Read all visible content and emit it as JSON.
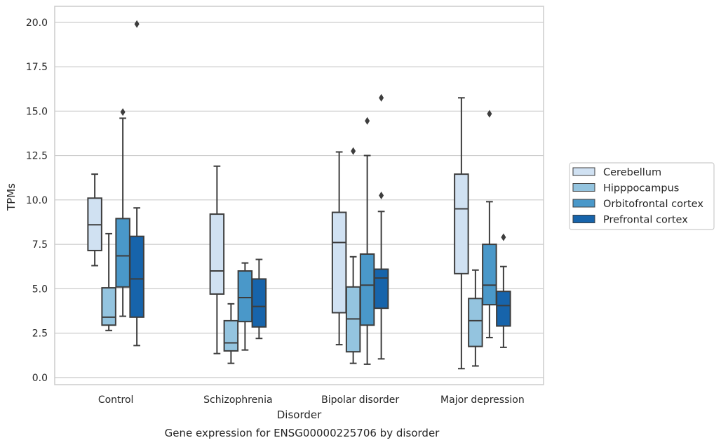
{
  "chart_data": {
    "type": "boxplot",
    "title": "Gene expression for ENSG00000225706 by disorder",
    "xlabel": "Disorder",
    "ylabel": "TPMs",
    "ylim": [
      -0.4,
      20.9
    ],
    "yticks": [
      "0.0",
      "2.5",
      "5.0",
      "7.5",
      "10.0",
      "12.5",
      "15.0",
      "17.5",
      "20.0"
    ],
    "grid": true,
    "legend_position": "right",
    "categories": [
      "Control",
      "Schizophrenia",
      "Bipolar disorder",
      "Major depression"
    ],
    "series": [
      {
        "name": "Cerebellum",
        "color": "#d0e1f2",
        "boxes": [
          {
            "whisker_low": 6.3,
            "q1": 7.15,
            "median": 8.6,
            "q3": 10.1,
            "whisker_high": 11.45,
            "outliers": []
          },
          {
            "whisker_low": 1.35,
            "q1": 4.7,
            "median": 6.0,
            "q3": 9.2,
            "whisker_high": 11.9,
            "outliers": []
          },
          {
            "whisker_low": 1.85,
            "q1": 3.65,
            "median": 7.6,
            "q3": 9.3,
            "whisker_high": 12.7,
            "outliers": []
          },
          {
            "whisker_low": 0.5,
            "q1": 5.85,
            "median": 9.5,
            "q3": 11.45,
            "whisker_high": 15.75,
            "outliers": []
          }
        ]
      },
      {
        "name": "Hipppocampus",
        "color": "#94c4df",
        "boxes": [
          {
            "whisker_low": 2.65,
            "q1": 2.95,
            "median": 3.4,
            "q3": 5.05,
            "whisker_high": 8.1,
            "outliers": []
          },
          {
            "whisker_low": 0.8,
            "q1": 1.5,
            "median": 1.95,
            "q3": 3.2,
            "whisker_high": 4.15,
            "outliers": []
          },
          {
            "whisker_low": 0.8,
            "q1": 1.45,
            "median": 3.3,
            "q3": 5.1,
            "whisker_high": 6.8,
            "outliers": [
              12.75
            ]
          },
          {
            "whisker_low": 0.65,
            "q1": 1.75,
            "median": 3.2,
            "q3": 4.45,
            "whisker_high": 6.05,
            "outliers": []
          }
        ]
      },
      {
        "name": "Orbitofrontal cortex",
        "color": "#4a98c9",
        "boxes": [
          {
            "whisker_low": 3.45,
            "q1": 5.1,
            "median": 6.85,
            "q3": 8.95,
            "whisker_high": 14.6,
            "outliers": [
              14.95
            ]
          },
          {
            "whisker_low": 1.55,
            "q1": 3.15,
            "median": 4.5,
            "q3": 6.0,
            "whisker_high": 6.45,
            "outliers": []
          },
          {
            "whisker_low": 0.75,
            "q1": 2.95,
            "median": 5.2,
            "q3": 6.95,
            "whisker_high": 12.5,
            "outliers": [
              14.45
            ]
          },
          {
            "whisker_low": 2.25,
            "q1": 4.1,
            "median": 5.2,
            "q3": 7.5,
            "whisker_high": 9.9,
            "outliers": [
              14.85
            ]
          }
        ]
      },
      {
        "name": "Prefrontal cortex",
        "color": "#1764ab",
        "boxes": [
          {
            "whisker_low": 1.8,
            "q1": 3.4,
            "median": 5.55,
            "q3": 7.95,
            "whisker_high": 9.55,
            "outliers": [
              19.9
            ]
          },
          {
            "whisker_low": 2.2,
            "q1": 2.85,
            "median": 4.0,
            "q3": 5.55,
            "whisker_high": 6.65,
            "outliers": []
          },
          {
            "whisker_low": 1.05,
            "q1": 3.9,
            "median": 5.6,
            "q3": 6.1,
            "whisker_high": 9.35,
            "outliers": [
              10.25,
              15.75
            ]
          },
          {
            "whisker_low": 1.7,
            "q1": 2.9,
            "median": 4.05,
            "q3": 4.85,
            "whisker_high": 6.25,
            "outliers": [
              7.9
            ]
          }
        ]
      }
    ]
  }
}
